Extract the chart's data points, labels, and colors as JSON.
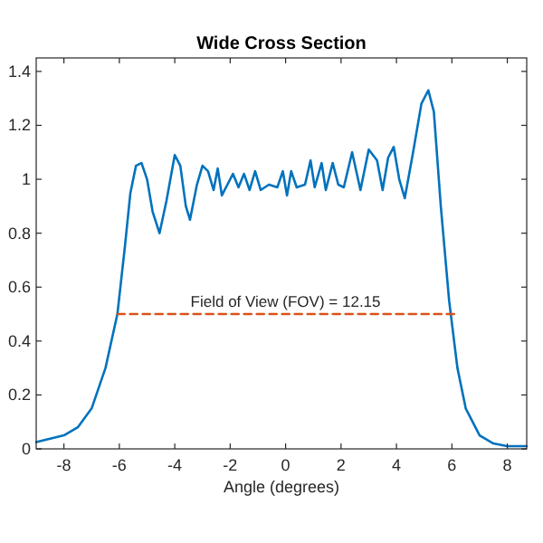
{
  "chart_data": {
    "type": "line",
    "title": "Wide Cross Section",
    "xlabel": "Angle (degrees)",
    "xlim": [
      -9,
      8.7
    ],
    "xticks": [
      -8,
      -6,
      -4,
      -2,
      0,
      2,
      4,
      6,
      8
    ],
    "ylim": [
      0,
      1.45
    ],
    "yticks": [
      0,
      0.2,
      0.4,
      0.6,
      0.8,
      1,
      1.2,
      1.4
    ],
    "grid": false,
    "annotations": [
      {
        "text": "Field of View (FOV) = 12.15",
        "x": 0,
        "y": 0.5
      }
    ],
    "series": [
      {
        "color": "#0072bd",
        "line_style": "solid",
        "x": [
          -9,
          -8,
          -7.5,
          -7,
          -6.5,
          -6.07,
          -5.8,
          -5.6,
          -5.4,
          -5.2,
          -5,
          -4.8,
          -4.55,
          -4.3,
          -4,
          -3.8,
          -3.6,
          -3.45,
          -3.2,
          -3,
          -2.8,
          -2.6,
          -2.45,
          -2.3,
          -2.1,
          -1.9,
          -1.7,
          -1.5,
          -1.3,
          -1.1,
          -0.9,
          -0.6,
          -0.3,
          -0.1,
          0.05,
          0.2,
          0.4,
          0.7,
          0.9,
          1.05,
          1.3,
          1.45,
          1.7,
          1.9,
          2.1,
          2.4,
          2.7,
          3,
          3.3,
          3.5,
          3.7,
          3.9,
          4.1,
          4.3,
          4.6,
          4.9,
          5.15,
          5.35,
          5.6,
          5.9,
          6.2,
          6.5,
          7,
          7.5,
          8,
          8.7
        ],
        "values": [
          0.025,
          0.05,
          0.08,
          0.15,
          0.3,
          0.5,
          0.75,
          0.95,
          1.05,
          1.06,
          1,
          0.88,
          0.8,
          0.92,
          1.09,
          1.05,
          0.9,
          0.85,
          0.98,
          1.05,
          1.03,
          0.96,
          1.04,
          0.94,
          0.98,
          1.02,
          0.97,
          1.02,
          0.96,
          1.03,
          0.96,
          0.98,
          0.97,
          1.03,
          0.94,
          1.03,
          0.97,
          0.98,
          1.07,
          0.97,
          1.06,
          0.96,
          1.06,
          0.98,
          0.97,
          1.1,
          0.96,
          1.11,
          1.07,
          0.96,
          1.08,
          1.12,
          1,
          0.93,
          1.1,
          1.28,
          1.33,
          1.25,
          0.9,
          0.55,
          0.3,
          0.15,
          0.05,
          0.02,
          0.01,
          0.01
        ]
      },
      {
        "color": "#d95319",
        "line_style": "dashed",
        "x": [
          -6.07,
          6.08
        ],
        "values": [
          0.5,
          0.5
        ]
      }
    ]
  }
}
